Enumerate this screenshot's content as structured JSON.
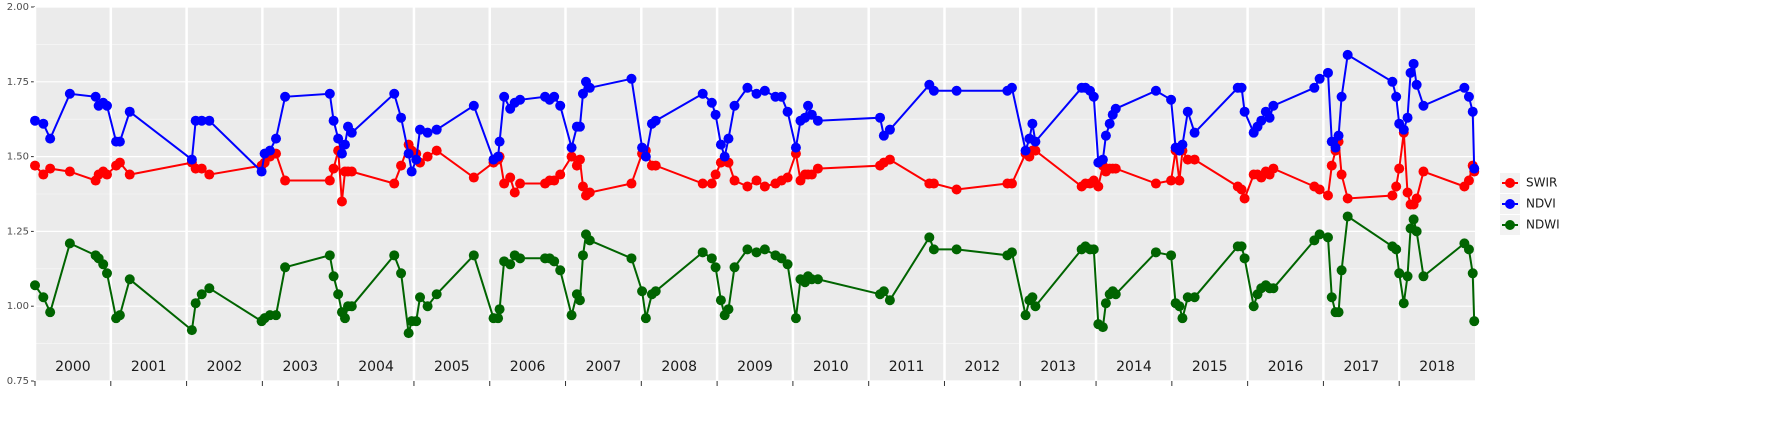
{
  "chart_data": {
    "type": "line",
    "x": [
      2000.0,
      2000.11,
      2000.2,
      2000.46,
      2000.8,
      2000.84,
      2000.9,
      2000.95,
      2001.07,
      2001.12,
      2001.25,
      2002.07,
      2002.12,
      2002.2,
      2002.3,
      2002.99,
      2003.03,
      2003.1,
      2003.18,
      2003.3,
      2003.89,
      2003.94,
      2004.0,
      2004.05,
      2004.09,
      2004.13,
      2004.18,
      2004.74,
      2004.83,
      2004.93,
      2004.97,
      2005.03,
      2005.08,
      2005.18,
      2005.3,
      2005.79,
      2006.05,
      2006.11,
      2006.13,
      2006.19,
      2006.27,
      2006.33,
      2006.4,
      2006.73,
      2006.79,
      2006.85,
      2006.93,
      2007.08,
      2007.15,
      2007.19,
      2007.23,
      2007.27,
      2007.32,
      2007.87,
      2008.01,
      2008.06,
      2008.14,
      2008.19,
      2008.81,
      2008.93,
      2008.98,
      2009.05,
      2009.1,
      2009.15,
      2009.23,
      2009.4,
      2009.52,
      2009.63,
      2009.77,
      2009.85,
      2009.93,
      2010.04,
      2010.1,
      2010.16,
      2010.2,
      2010.25,
      2010.33,
      2011.15,
      2011.2,
      2011.28,
      2011.8,
      2011.86,
      2012.16,
      2012.83,
      2012.89,
      2013.07,
      2013.12,
      2013.16,
      2013.2,
      2013.81,
      2013.86,
      2013.92,
      2013.97,
      2014.03,
      2014.09,
      2014.13,
      2014.18,
      2014.22,
      2014.26,
      2014.79,
      2014.99,
      2015.05,
      2015.1,
      2015.14,
      2015.21,
      2015.3,
      2015.87,
      2015.92,
      2015.96,
      2016.08,
      2016.13,
      2016.18,
      2016.24,
      2016.29,
      2016.34,
      2016.88,
      2016.95,
      2017.06,
      2017.11,
      2017.16,
      2017.2,
      2017.24,
      2017.32,
      2017.91,
      2017.96,
      2018.0,
      2018.06,
      2018.11,
      2018.15,
      2018.19,
      2018.23,
      2018.32,
      2018.86,
      2018.92,
      2018.97,
      2018.99
    ],
    "series": [
      {
        "name": "SWIR",
        "color": "#ff0000",
        "values": [
          1.47,
          1.44,
          1.46,
          1.45,
          1.42,
          1.44,
          1.45,
          1.44,
          1.47,
          1.48,
          1.44,
          1.48,
          1.46,
          1.46,
          1.44,
          1.47,
          1.48,
          1.5,
          1.51,
          1.42,
          1.42,
          1.46,
          1.52,
          1.35,
          1.45,
          1.45,
          1.45,
          1.41,
          1.47,
          1.54,
          1.52,
          1.51,
          1.48,
          1.5,
          1.52,
          1.43,
          1.48,
          1.49,
          1.5,
          1.41,
          1.43,
          1.38,
          1.41,
          1.41,
          1.42,
          1.42,
          1.44,
          1.5,
          1.47,
          1.49,
          1.4,
          1.37,
          1.38,
          1.41,
          1.51,
          1.52,
          1.47,
          1.47,
          1.41,
          1.41,
          1.44,
          1.48,
          1.49,
          1.48,
          1.42,
          1.4,
          1.42,
          1.4,
          1.41,
          1.42,
          1.43,
          1.51,
          1.42,
          1.44,
          1.44,
          1.44,
          1.46,
          1.47,
          1.48,
          1.49,
          1.41,
          1.41,
          1.39,
          1.41,
          1.41,
          1.51,
          1.5,
          1.52,
          1.52,
          1.4,
          1.41,
          1.41,
          1.42,
          1.4,
          1.47,
          1.45,
          1.46,
          1.46,
          1.46,
          1.41,
          1.42,
          1.52,
          1.42,
          1.52,
          1.49,
          1.49,
          1.4,
          1.39,
          1.36,
          1.44,
          1.44,
          1.43,
          1.45,
          1.44,
          1.46,
          1.4,
          1.39,
          1.37,
          1.47,
          1.52,
          1.55,
          1.44,
          1.36,
          1.37,
          1.4,
          1.46,
          1.58,
          1.38,
          1.34,
          1.34,
          1.36,
          1.45,
          1.4,
          1.42,
          1.47,
          1.45
        ]
      },
      {
        "name": "NDVI",
        "color": "#0000ff",
        "values": [
          1.62,
          1.61,
          1.56,
          1.71,
          1.7,
          1.67,
          1.68,
          1.67,
          1.55,
          1.55,
          1.65,
          1.49,
          1.62,
          1.62,
          1.62,
          1.45,
          1.51,
          1.52,
          1.56,
          1.7,
          1.71,
          1.62,
          1.56,
          1.51,
          1.54,
          1.6,
          1.58,
          1.71,
          1.63,
          1.51,
          1.45,
          1.49,
          1.59,
          1.58,
          1.59,
          1.67,
          1.49,
          1.5,
          1.55,
          1.7,
          1.66,
          1.68,
          1.69,
          1.7,
          1.69,
          1.7,
          1.67,
          1.53,
          1.6,
          1.6,
          1.71,
          1.75,
          1.73,
          1.76,
          1.53,
          1.5,
          1.61,
          1.62,
          1.71,
          1.68,
          1.64,
          1.54,
          1.5,
          1.56,
          1.67,
          1.73,
          1.71,
          1.72,
          1.7,
          1.7,
          1.65,
          1.53,
          1.62,
          1.63,
          1.67,
          1.64,
          1.62,
          1.63,
          1.57,
          1.59,
          1.74,
          1.72,
          1.72,
          1.72,
          1.73,
          1.52,
          1.56,
          1.61,
          1.55,
          1.73,
          1.73,
          1.72,
          1.7,
          1.48,
          1.49,
          1.57,
          1.61,
          1.64,
          1.66,
          1.72,
          1.69,
          1.53,
          1.52,
          1.54,
          1.65,
          1.58,
          1.73,
          1.73,
          1.65,
          1.58,
          1.6,
          1.62,
          1.65,
          1.63,
          1.67,
          1.73,
          1.76,
          1.78,
          1.55,
          1.53,
          1.57,
          1.7,
          1.84,
          1.75,
          1.7,
          1.61,
          1.59,
          1.63,
          1.78,
          1.81,
          1.74,
          1.67,
          1.73,
          1.7,
          1.65,
          1.46
        ]
      },
      {
        "name": "NDWI",
        "color": "#006400",
        "values": [
          1.07,
          1.03,
          0.98,
          1.21,
          1.17,
          1.16,
          1.14,
          1.11,
          0.96,
          0.97,
          1.09,
          0.92,
          1.01,
          1.04,
          1.06,
          0.95,
          0.96,
          0.97,
          0.97,
          1.13,
          1.17,
          1.1,
          1.04,
          0.98,
          0.96,
          1.0,
          1.0,
          1.17,
          1.11,
          0.91,
          0.95,
          0.95,
          1.03,
          1.0,
          1.04,
          1.17,
          0.96,
          0.96,
          0.99,
          1.15,
          1.14,
          1.17,
          1.16,
          1.16,
          1.16,
          1.15,
          1.12,
          0.97,
          1.04,
          1.02,
          1.17,
          1.24,
          1.22,
          1.16,
          1.05,
          0.96,
          1.04,
          1.05,
          1.18,
          1.16,
          1.13,
          1.02,
          0.97,
          0.99,
          1.13,
          1.19,
          1.18,
          1.19,
          1.17,
          1.16,
          1.14,
          0.96,
          1.09,
          1.08,
          1.1,
          1.09,
          1.09,
          1.04,
          1.05,
          1.02,
          1.23,
          1.19,
          1.19,
          1.17,
          1.18,
          0.97,
          1.02,
          1.03,
          1.0,
          1.19,
          1.2,
          1.19,
          1.19,
          0.94,
          0.93,
          1.01,
          1.04,
          1.05,
          1.04,
          1.18,
          1.17,
          1.01,
          1.0,
          0.96,
          1.03,
          1.03,
          1.2,
          1.2,
          1.16,
          1.0,
          1.04,
          1.06,
          1.07,
          1.06,
          1.06,
          1.22,
          1.24,
          1.23,
          1.03,
          0.98,
          0.98,
          1.12,
          1.3,
          1.2,
          1.19,
          1.11,
          1.01,
          1.1,
          1.26,
          1.29,
          1.25,
          1.1,
          1.21,
          1.19,
          1.11,
          0.95
        ]
      }
    ],
    "xlim": [
      2000,
      2019
    ],
    "xticks": [
      2000,
      2001,
      2002,
      2003,
      2004,
      2005,
      2006,
      2007,
      2008,
      2009,
      2010,
      2011,
      2012,
      2013,
      2014,
      2015,
      2016,
      2017,
      2018
    ],
    "ylim": [
      0.75,
      2.0
    ],
    "yticks": [
      {
        "value": 0.75,
        "label": "0.75"
      },
      {
        "value": 1,
        "label": "1.00"
      },
      {
        "value": 1.25,
        "label": "1.25"
      },
      {
        "value": 1.5,
        "label": "1.50"
      },
      {
        "value": 1.75,
        "label": "1.75"
      },
      {
        "value": 2,
        "label": "2.00"
      }
    ],
    "minor_yticks": [
      0.875,
      1.125,
      1.375,
      1.625,
      1.875
    ],
    "grid": true,
    "legend": "right"
  }
}
